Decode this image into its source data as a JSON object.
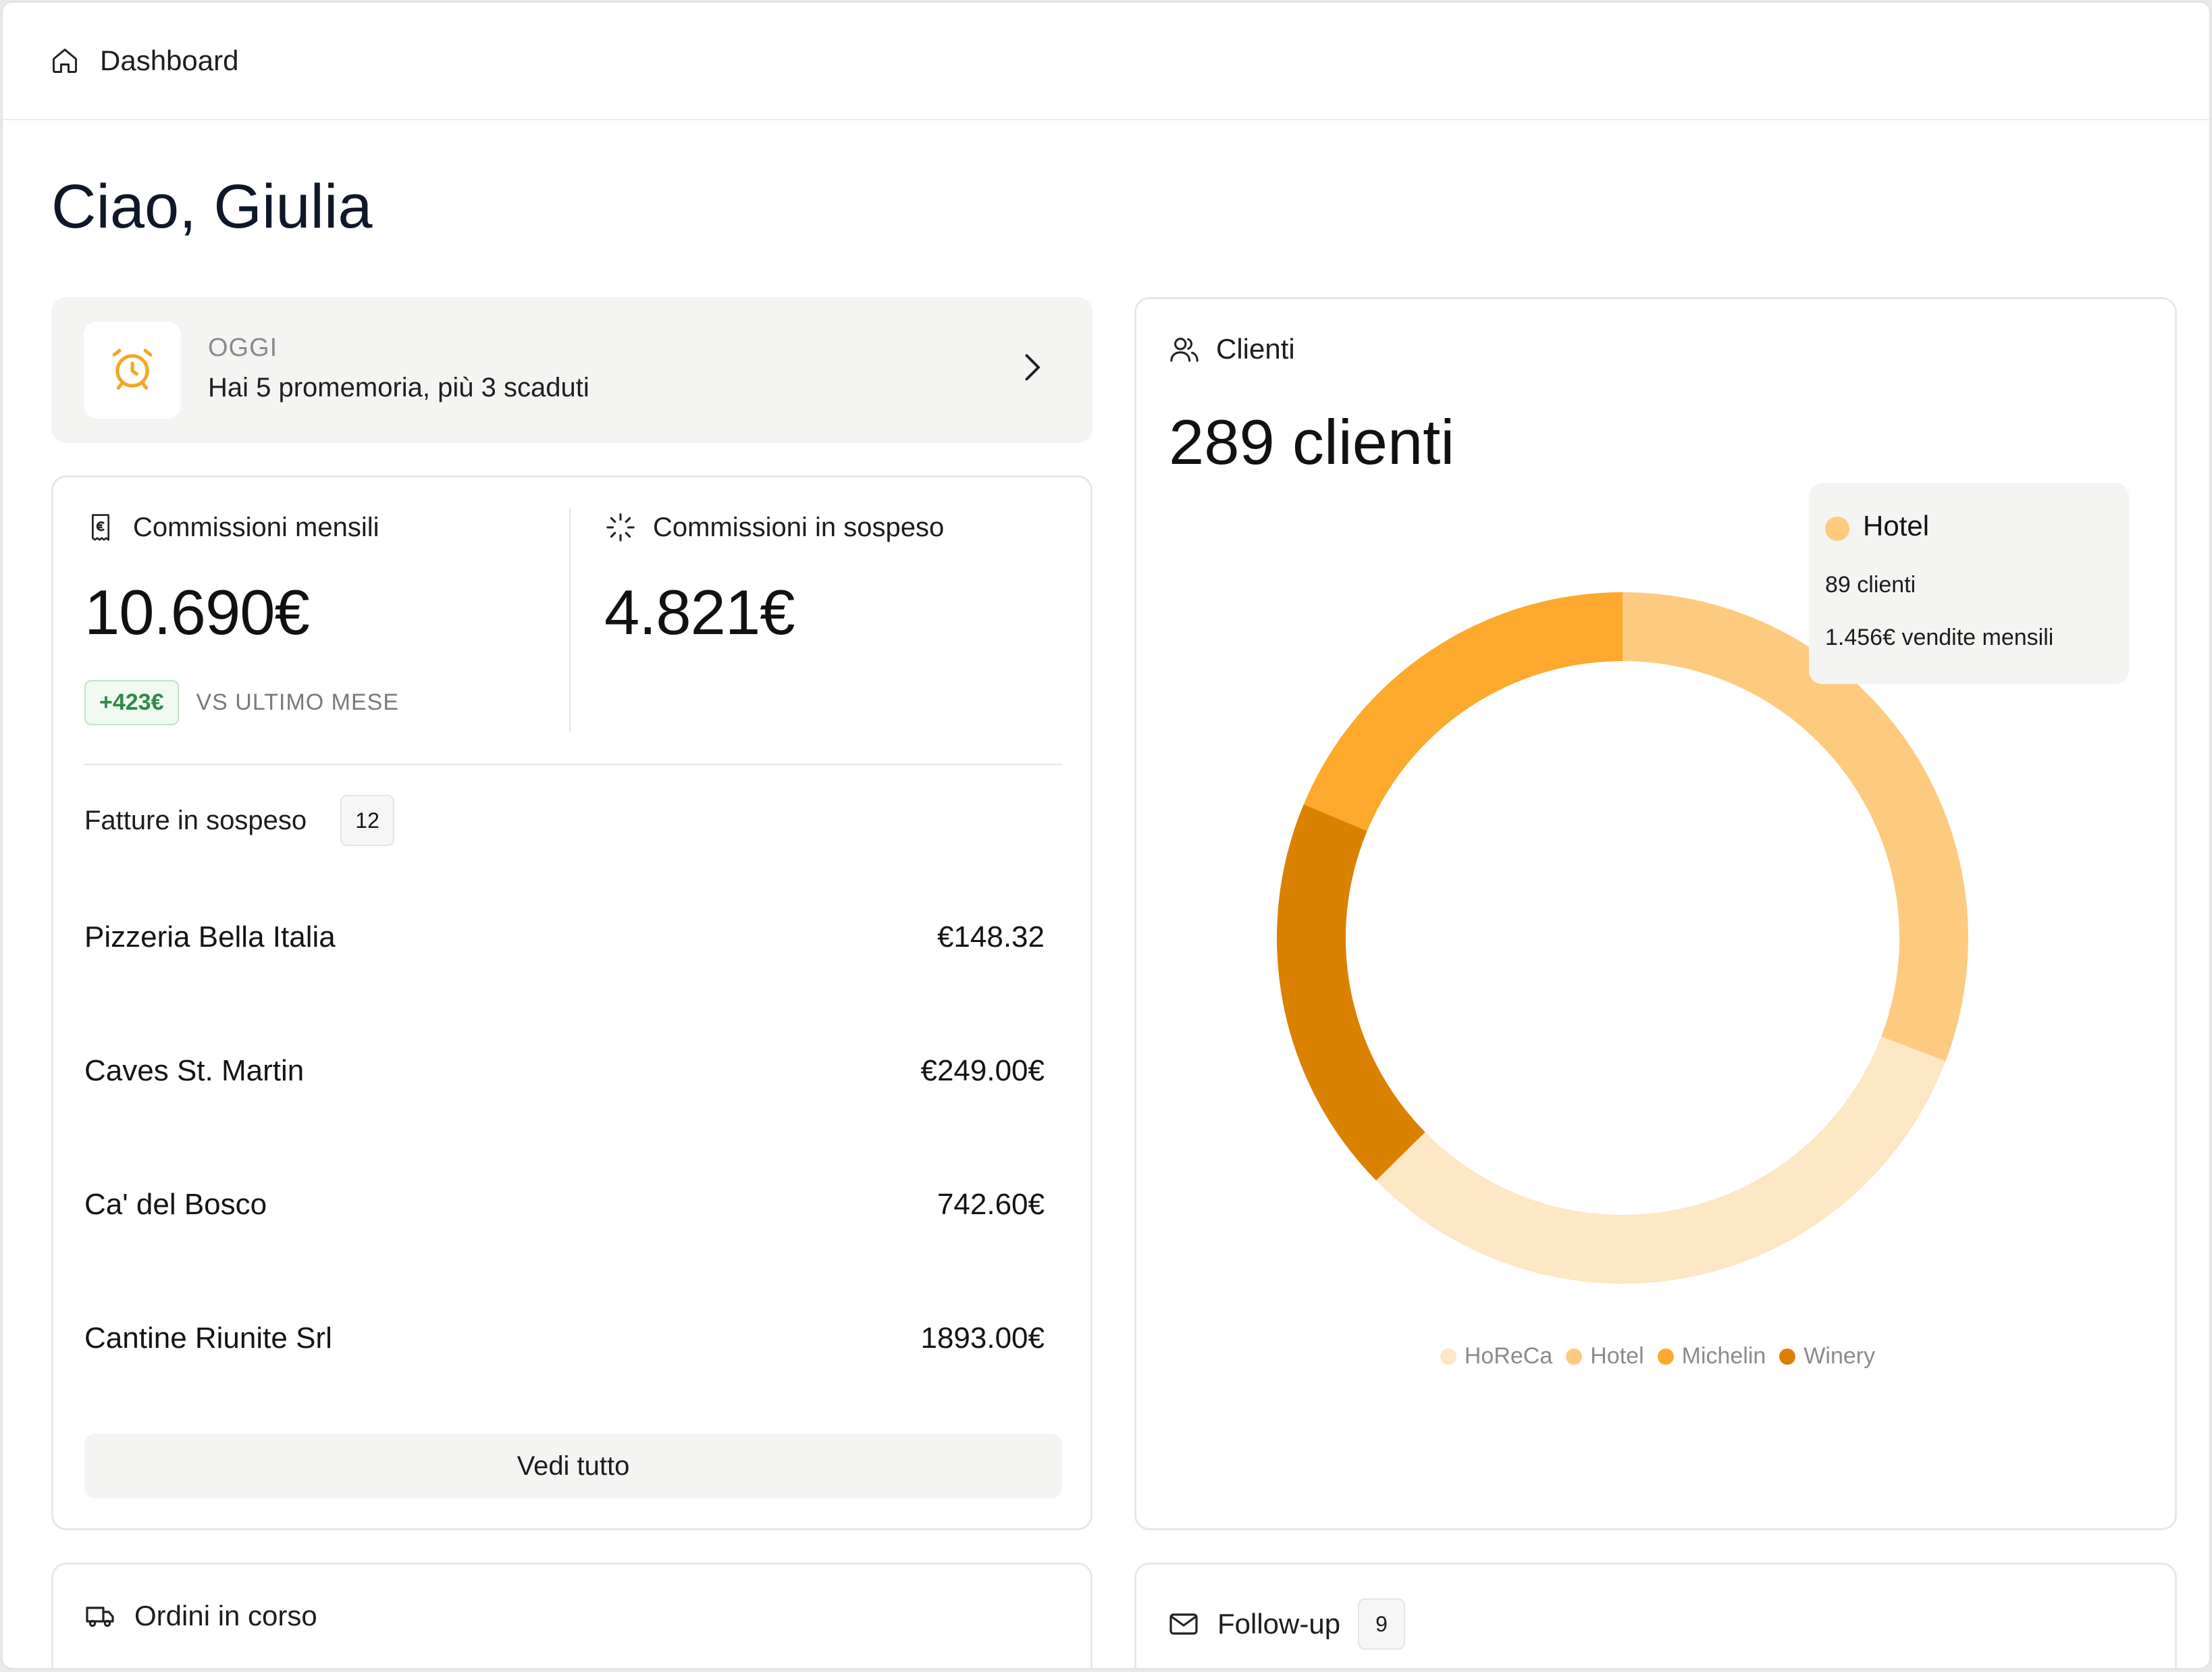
{
  "topbar": {
    "breadcrumb": "Dashboard",
    "icon": "home-icon"
  },
  "greeting": "Ciao, Giulia",
  "reminder": {
    "label": "OGGI",
    "text": "Hai 5 promemoria, più 3 scaduti",
    "icon": "alarm-clock-icon",
    "icon_color": "#f5a623"
  },
  "commissions": {
    "monthly": {
      "label": "Commissioni mensili",
      "value": "10.690€",
      "icon": "euro-receipt-icon"
    },
    "pending": {
      "label": "Commissioni in sospeso",
      "value": "4.821€",
      "icon": "loader-icon"
    },
    "delta": {
      "badge": "+423€",
      "label": "VS ULTIMO MESE",
      "color": "#2e8a47"
    }
  },
  "invoices": {
    "title": "Fatture in sospeso",
    "count": "12",
    "rows": [
      {
        "name": "Pizzeria Bella Italia",
        "amount": "€148.32"
      },
      {
        "name": "Caves St. Martin",
        "amount": "€249.00€"
      },
      {
        "name": "Ca' del Bosco",
        "amount": "742.60€"
      },
      {
        "name": "Cantine Riunite Srl",
        "amount": "1893.00€"
      }
    ],
    "see_all": "Vedi tutto"
  },
  "clients": {
    "label": "Clienti",
    "total": "289 clienti",
    "icon": "users-icon",
    "tooltip": {
      "name": "Hotel",
      "line1": "89 clienti",
      "line2": "1.456€ vendite mensili",
      "color": "#fdcb80"
    },
    "legend": [
      {
        "name": "HoReCa",
        "color": "#fde7c4"
      },
      {
        "name": "Hotel",
        "color": "#fdcb80"
      },
      {
        "name": "Michelin",
        "color": "#fca92e"
      },
      {
        "name": "Winery",
        "color": "#db8100"
      }
    ]
  },
  "chart_data": {
    "type": "pie",
    "variant": "donut",
    "categories": [
      "Hotel",
      "HoReCa",
      "Winery",
      "Michelin"
    ],
    "values": [
      89,
      92,
      54,
      54
    ],
    "colors": [
      "#fdcb80",
      "#fde7c4",
      "#db8100",
      "#fca92e"
    ],
    "start": "top",
    "direction": "clockwise",
    "legend_position": "bottom"
  },
  "orders": {
    "label": "Ordini in corso",
    "icon": "truck-icon"
  },
  "followup": {
    "label": "Follow-up",
    "count": "9",
    "icon": "mail-icon"
  }
}
